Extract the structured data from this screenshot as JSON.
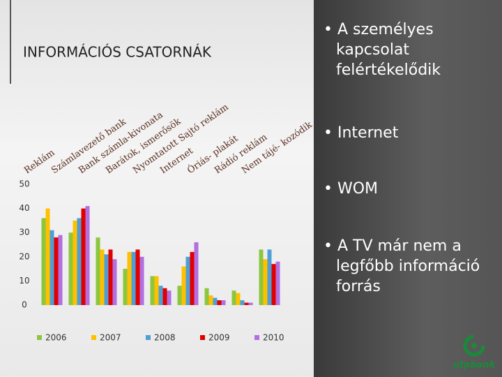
{
  "chart_data": {
    "type": "bar",
    "title": "INFORMÁCIÓS CSATORNÁK",
    "categories": [
      "Reklám",
      "Számlavezető bank",
      "Bank számla-kivonata",
      "Barátok, ismerősök",
      "Nyomtatott Sajtó reklám",
      "Internet",
      "Óriás- plakát",
      "Rádió reklám",
      "Nem tájé- kozódik"
    ],
    "series": [
      {
        "name": "2006",
        "color": "#8cc63f",
        "values": [
          36,
          30,
          28,
          15,
          12,
          8,
          7,
          6,
          23
        ]
      },
      {
        "name": "2007",
        "color": "#ffc000",
        "values": [
          40,
          35,
          23,
          22,
          12,
          16,
          4,
          5,
          19
        ]
      },
      {
        "name": "2008",
        "color": "#4f9fd6",
        "values": [
          31,
          36,
          21,
          22,
          8,
          20,
          3,
          2,
          23
        ]
      },
      {
        "name": "2009",
        "color": "#e00000",
        "values": [
          28,
          40,
          23,
          23,
          7,
          22,
          2,
          1,
          17
        ]
      },
      {
        "name": "2010",
        "color": "#b36ee0",
        "values": [
          29,
          41,
          19,
          20,
          6,
          26,
          2,
          1,
          18
        ]
      }
    ],
    "ylim": [
      0,
      50
    ],
    "yticks": [
      0,
      10,
      20,
      30,
      40,
      50
    ],
    "legend": "bottom"
  },
  "bullets": [
    "A személyes kapcsolat felértékelődik",
    "Internet",
    "WOM",
    "A TV már nem a legfőbb információ forrás"
  ],
  "logo": "otpbank"
}
